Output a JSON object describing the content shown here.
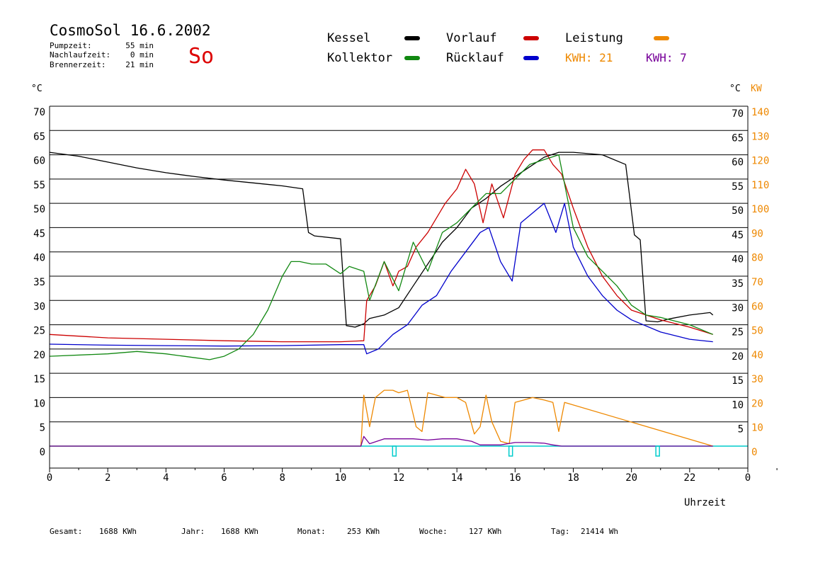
{
  "header": {
    "title": "CosmoSol 16.6.2002",
    "day": "So",
    "stats": [
      {
        "label": "Pumpzeit:",
        "value": "55 min"
      },
      {
        "label": "Nachlaufzeit:",
        "value": "0 min"
      },
      {
        "label": "Brennerzeit:",
        "value": "21 min"
      }
    ]
  },
  "legend": {
    "kessel": {
      "label": "Kessel",
      "color": "#000000"
    },
    "vorlauf": {
      "label": "Vorlauf",
      "color": "#cc0000"
    },
    "leistung": {
      "label": "Leistung",
      "color": "#ee8800"
    },
    "kollektor": {
      "label": "Kollektor",
      "color": "#118811"
    },
    "ruecklauf": {
      "label": "Rücklauf",
      "color": "#0000cc"
    },
    "kwh1": {
      "label": "KWH: 21",
      "color": "#ee8800"
    },
    "kwh2": {
      "label": "KWH: 7",
      "color": "#770099"
    }
  },
  "footer": [
    {
      "label": "Gesamt:",
      "value": "1688 KWh"
    },
    {
      "label": "Jahr:",
      "value": "1688 KWh"
    },
    {
      "label": "Monat:",
      "value": "253 KWh"
    },
    {
      "label": "Woche:",
      "value": "127 KWh"
    },
    {
      "label": "Tag:",
      "value": "21414 Wh"
    }
  ],
  "chart_data": {
    "type": "line",
    "xlabel": "Uhrzeit",
    "ylabel_left": "°C",
    "ylabel_right_c": "°C",
    "ylabel_right_kw": "KW",
    "xlim": [
      0,
      24
    ],
    "ylim": [
      -5,
      70
    ],
    "x_ticks": [
      "0",
      "2",
      "4",
      "6",
      "8",
      "10",
      "12",
      "14",
      "16",
      "18",
      "20",
      "22",
      "0"
    ],
    "y_ticks_left": [
      "70",
      "65",
      "60",
      "55",
      "50",
      "45",
      "40",
      "35",
      "30",
      "25",
      "20",
      "15",
      "10",
      "5",
      "0"
    ],
    "y_ticks_right_c": [
      "70",
      "65",
      "60",
      "55",
      "50",
      "45",
      "40",
      "35",
      "30",
      "25",
      "20",
      "15",
      "10",
      "5"
    ],
    "y_ticks_right_kw": [
      "140",
      "130",
      "120",
      "110",
      "100",
      "90",
      "80",
      "70",
      "60",
      "50",
      "40",
      "30",
      "20",
      "10",
      "0"
    ],
    "series": [
      {
        "name": "Kessel",
        "color": "#000000",
        "x": [
          0,
          1,
          2,
          3,
          4,
          5,
          6,
          7,
          8,
          8.7,
          8.9,
          9.1,
          10,
          10.2,
          10.5,
          10.8,
          11,
          11.5,
          12,
          12.5,
          13,
          13.5,
          14,
          14.5,
          15,
          15.5,
          16,
          16.5,
          17,
          17.5,
          18,
          19,
          19.8,
          20.1,
          20.3,
          20.5,
          20.9,
          21.3,
          22,
          22.7,
          22.8
        ],
        "values": [
          60.5,
          59.7,
          58.5,
          57.3,
          56.3,
          55.5,
          54.8,
          54.2,
          53.6,
          53,
          44,
          43.3,
          42.7,
          24.8,
          24.5,
          25.2,
          26.3,
          27,
          28.5,
          33,
          37.5,
          42,
          45,
          49,
          51,
          53.5,
          55.5,
          57.5,
          59.5,
          60.5,
          60.5,
          60,
          58,
          43.5,
          42.5,
          25.8,
          25.6,
          26.2,
          27,
          27.5,
          27
        ]
      },
      {
        "name": "Vorlauf",
        "color": "#cc0000",
        "x": [
          0,
          2,
          4,
          6,
          8,
          10,
          10.8,
          10.9,
          11.2,
          11.5,
          11.8,
          12,
          12.3,
          12.6,
          13,
          13.3,
          13.6,
          14,
          14.3,
          14.6,
          14.9,
          15.2,
          15.6,
          16,
          16.3,
          16.6,
          17,
          17.3,
          17.6,
          18,
          18.5,
          19,
          19.5,
          20,
          21,
          22,
          22.8
        ],
        "values": [
          23,
          22.3,
          22,
          21.7,
          21.5,
          21.5,
          21.7,
          30,
          33,
          38,
          33,
          36,
          37,
          41,
          44,
          47,
          50,
          53,
          57,
          54,
          46,
          54,
          47,
          56,
          59,
          61,
          61,
          58,
          56,
          49,
          41,
          35,
          31,
          28,
          26,
          24.5,
          23
        ]
      },
      {
        "name": "Kollektor",
        "color": "#118811",
        "x": [
          0,
          2,
          3,
          4,
          5,
          5.5,
          6,
          6.5,
          7,
          7.5,
          8,
          8.3,
          8.6,
          9,
          9.5,
          10,
          10.3,
          10.8,
          11,
          11.5,
          12,
          12.5,
          13,
          13.5,
          14,
          14.5,
          15,
          15.5,
          16,
          16.5,
          17,
          17.5,
          18,
          18.5,
          19,
          19.5,
          20,
          20.5,
          21,
          22,
          22.8
        ],
        "values": [
          18.5,
          19,
          19.5,
          19,
          18.2,
          17.8,
          18.5,
          20,
          23,
          28,
          35,
          38,
          38,
          37.5,
          37.5,
          35.5,
          37,
          36,
          30,
          38,
          32,
          42,
          36,
          44,
          46,
          49,
          52,
          52,
          55,
          58,
          59,
          60,
          45,
          39,
          36,
          33,
          29,
          27,
          26.5,
          25,
          23
        ]
      },
      {
        "name": "Rücklauf",
        "color": "#0000cc",
        "x": [
          0,
          2,
          4,
          6,
          8,
          10,
          10.8,
          10.9,
          11.3,
          11.8,
          12.3,
          12.8,
          13.3,
          13.8,
          14.3,
          14.8,
          15.1,
          15.5,
          15.9,
          16.2,
          16.6,
          17,
          17.4,
          17.7,
          18,
          18.5,
          19,
          19.5,
          20,
          21,
          22,
          22.8
        ],
        "values": [
          21,
          20.8,
          20.7,
          20.6,
          20.7,
          20.9,
          20.9,
          19,
          20,
          23,
          25,
          29,
          31,
          36,
          40,
          44,
          45,
          38,
          34,
          46,
          48,
          50,
          44,
          50,
          41,
          35,
          31,
          28,
          26,
          23.5,
          22,
          21.5
        ]
      },
      {
        "name": "Leistung",
        "color": "#ee8800",
        "x": [
          0,
          10.7,
          10.8,
          11,
          11.2,
          11.5,
          11.8,
          12,
          12.3,
          12.6,
          12.8,
          13,
          13.3,
          13.6,
          14,
          14.3,
          14.6,
          14.8,
          15,
          15.2,
          15.5,
          15.8,
          16,
          16.3,
          16.6,
          17,
          17.3,
          17.5,
          17.7,
          22.8
        ],
        "values": [
          0,
          0,
          21,
          8,
          20,
          23,
          23,
          22,
          23,
          8,
          6,
          22,
          21,
          20,
          20,
          18,
          5,
          8,
          21,
          10,
          2,
          1,
          18,
          19,
          20,
          19,
          18,
          6,
          18,
          0
        ]
      },
      {
        "name": "KWH: 7",
        "color": "#770099",
        "x": [
          0,
          10.7,
          10.8,
          11,
          11.5,
          12,
          12.5,
          13,
          13.5,
          14,
          14.5,
          14.8,
          15.5,
          16,
          16.5,
          17,
          17.3,
          17.6,
          22.8
        ],
        "values": [
          0,
          0,
          4,
          1,
          3,
          3,
          3,
          2.5,
          3,
          3,
          2,
          0.5,
          0.5,
          1.5,
          1.5,
          1.2,
          0.5,
          0,
          0
        ]
      }
    ],
    "pump_markers": {
      "color": "#00cccc",
      "x": [
        11.85,
        15.85,
        20.9
      ]
    }
  }
}
